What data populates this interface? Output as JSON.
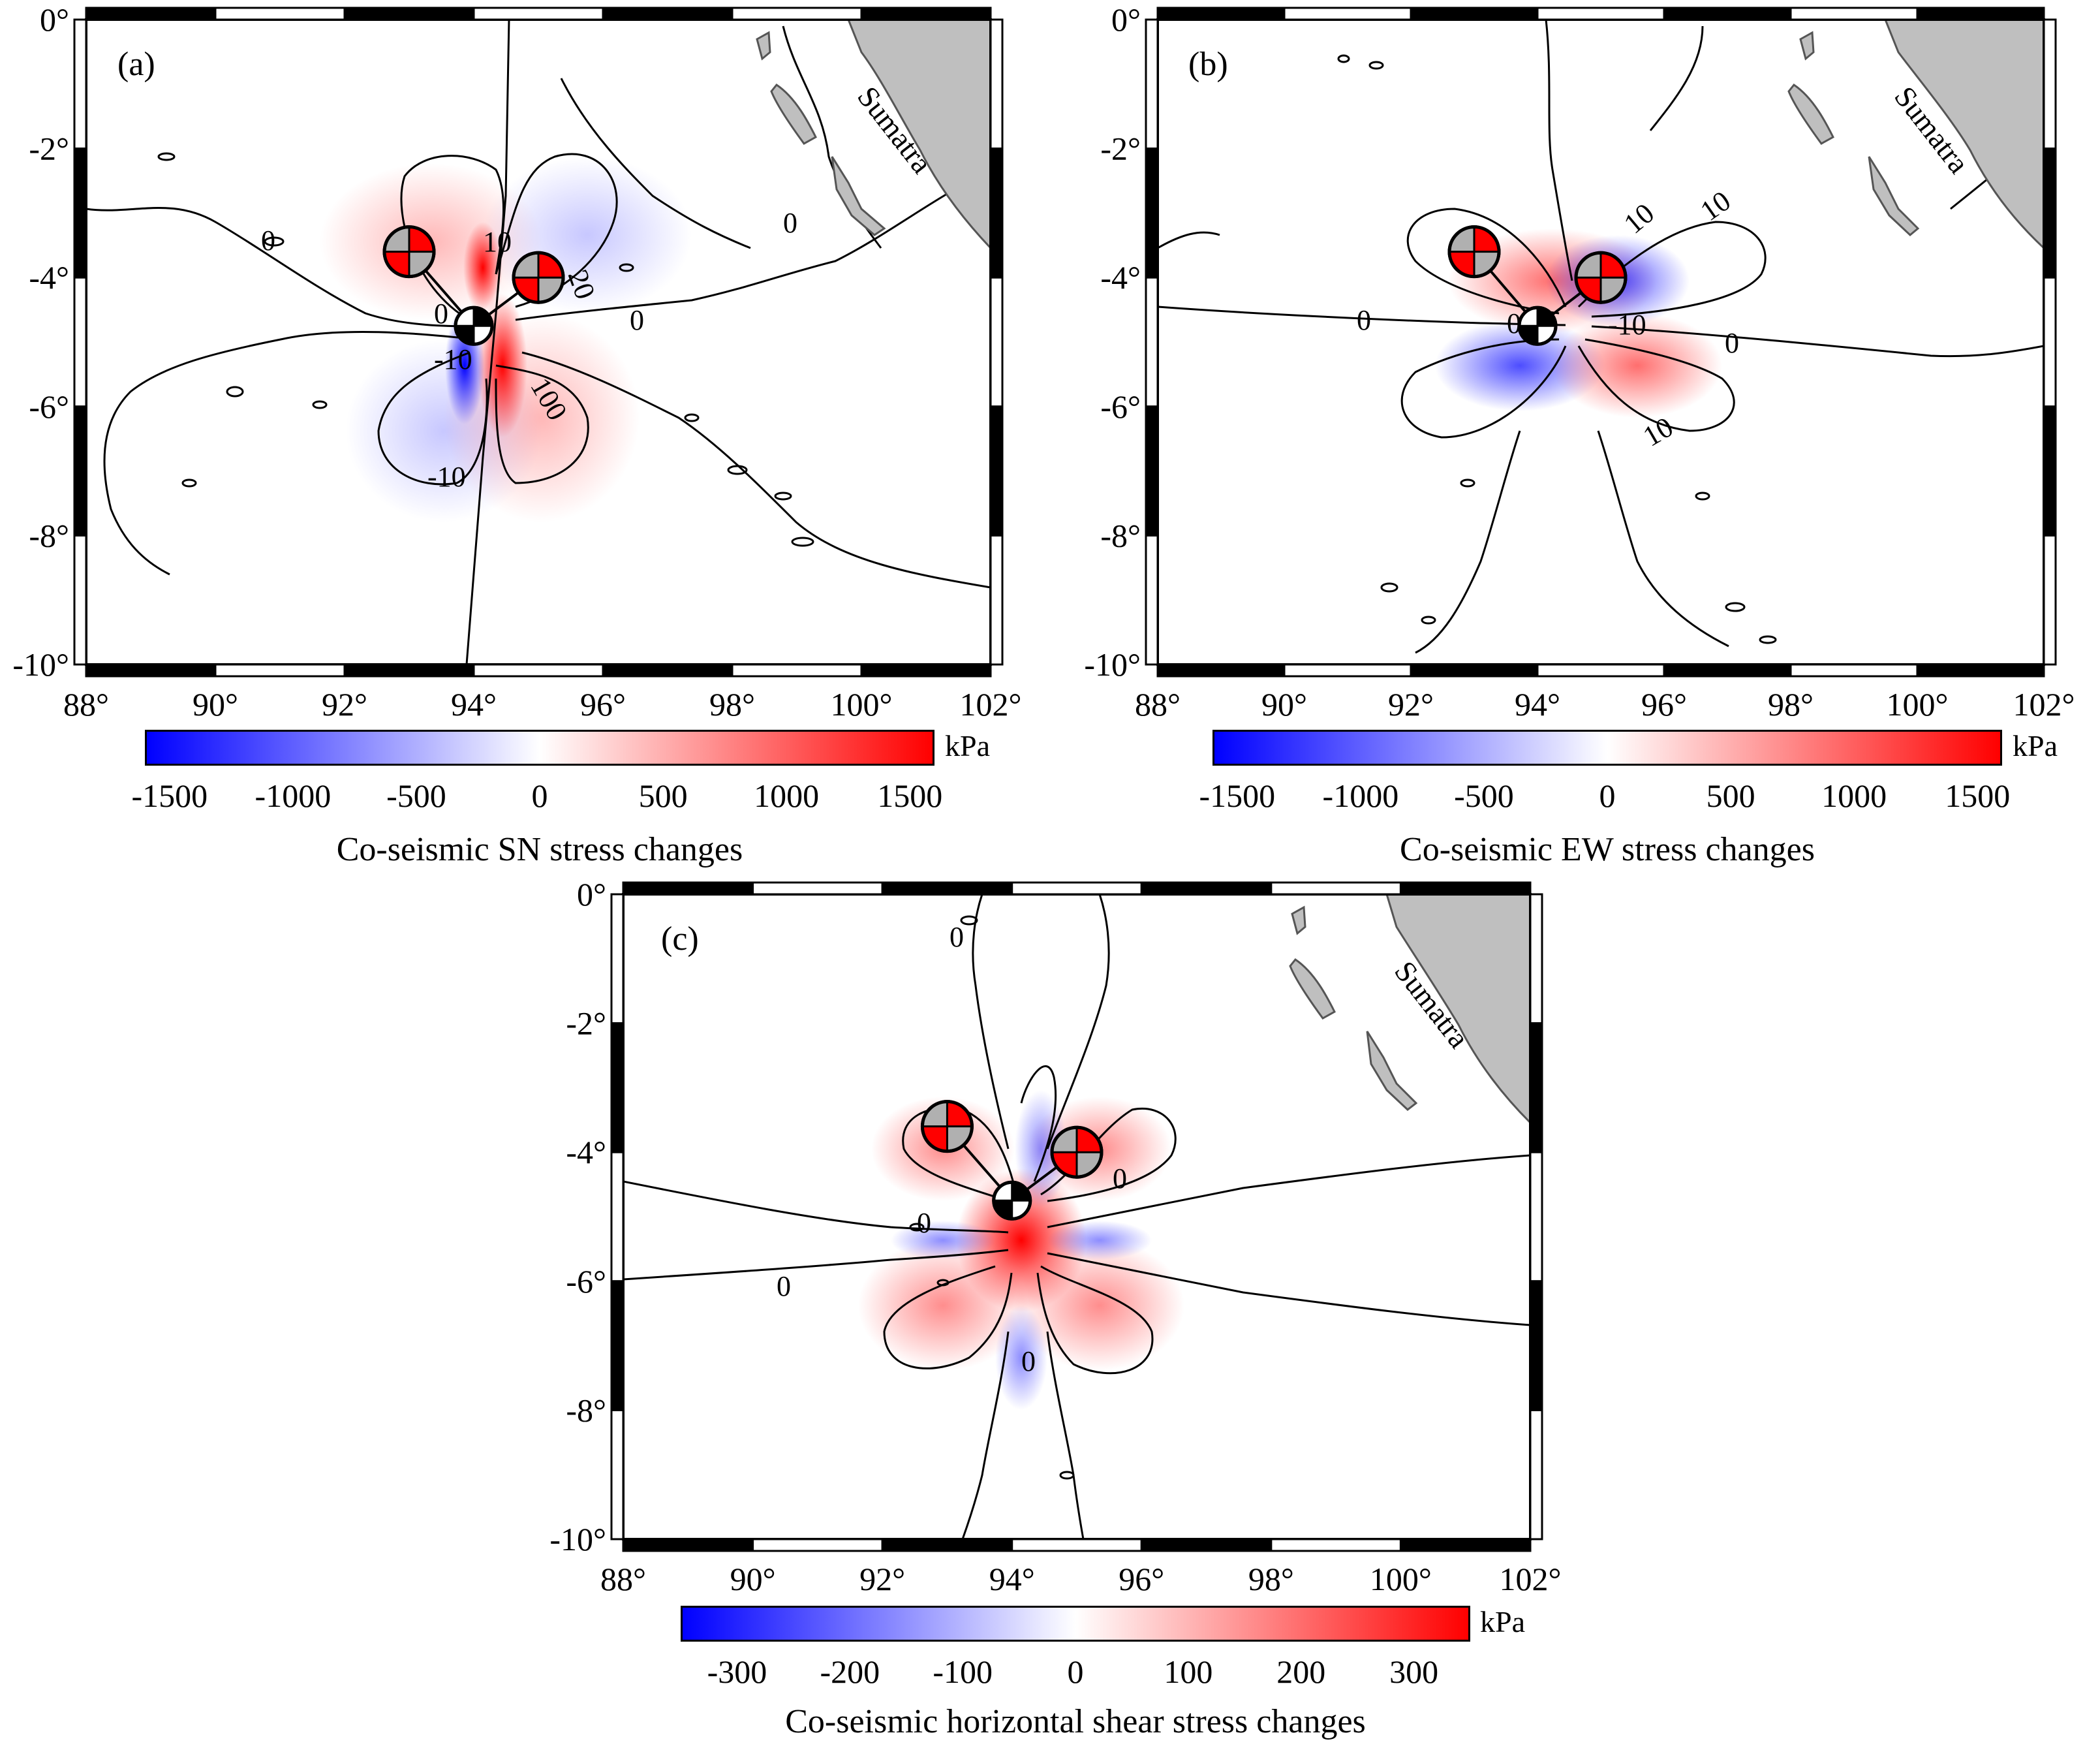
{
  "maps": [
    {
      "id": "a",
      "panel_label": "(a)",
      "colorbar_title": "Co-seismic SN stress changes",
      "colorbar_unit": "kPa",
      "colorbar_ticks": [
        "-1500",
        "-1000",
        "-500",
        "0",
        "500",
        "1000",
        "1500"
      ],
      "colorbar_range": [
        -1600,
        1600
      ],
      "contour_labels": [
        "0",
        "10",
        "-10",
        "100",
        "20",
        "0",
        "-10",
        "0",
        "0",
        "0"
      ],
      "pattern": "sn"
    },
    {
      "id": "b",
      "panel_label": "(b)",
      "colorbar_title": "Co-seismic EW stress changes",
      "colorbar_unit": "kPa",
      "colorbar_ticks": [
        "-1500",
        "-1000",
        "-500",
        "0",
        "500",
        "1000",
        "1500"
      ],
      "colorbar_range": [
        -1600,
        1600
      ],
      "contour_labels": [
        "0",
        "0",
        "-10",
        "0",
        "10",
        "10",
        "10",
        "1"
      ],
      "pattern": "ew"
    },
    {
      "id": "c",
      "panel_label": "(c)",
      "colorbar_title": "Co-seismic horizontal shear stress changes",
      "colorbar_unit": "kPa",
      "colorbar_ticks": [
        "-300",
        "-200",
        "-100",
        "0",
        "100",
        "200",
        "300"
      ],
      "colorbar_range": [
        -350,
        350
      ],
      "contour_labels": [
        "0",
        "0",
        "0",
        "0",
        "0"
      ],
      "pattern": "shear"
    }
  ],
  "axes": {
    "lon_ticks": [
      "88°",
      "90°",
      "92°",
      "94°",
      "96°",
      "98°",
      "100°",
      "102°"
    ],
    "lat_ticks": [
      "0°",
      "-2°",
      "-4°",
      "-6°",
      "-8°",
      "-10°"
    ],
    "lon_range": [
      88,
      102
    ],
    "lat_range": [
      -10,
      0
    ]
  },
  "land": {
    "label": "Sumatra",
    "color": "#bfbfbf"
  },
  "beachballs": [
    {
      "name": "event-nw",
      "lon": 93.0,
      "lat": -3.6,
      "colors": [
        "#ff0000",
        "#b0b0b0"
      ]
    },
    {
      "name": "event-ne",
      "lon": 95.0,
      "lat": -4.0,
      "colors": [
        "#ff0000",
        "#b0b0b0"
      ]
    },
    {
      "name": "event-main",
      "lon": 94.0,
      "lat": -4.75,
      "colors": [
        "#000000",
        "#ffffff"
      ]
    }
  ],
  "colors": {
    "negative": "#0000ff",
    "zero": "#ffffff",
    "positive": "#ff0000"
  }
}
